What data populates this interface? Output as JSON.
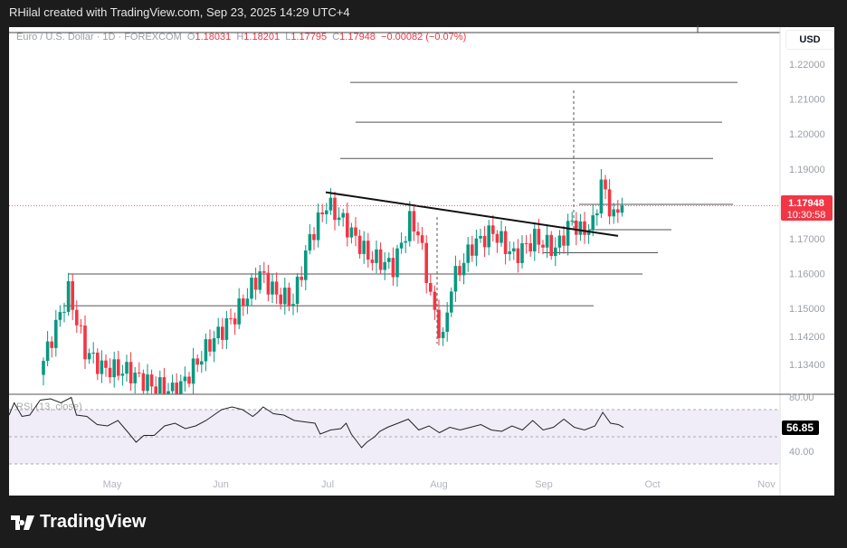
{
  "header": {
    "credit": "RHilal created with TradingView.com, Sep 23, 2025 14:29 UTC+4"
  },
  "legend": {
    "symbol": "Euro / U.S. Dollar · 1D · FOREXCOM",
    "o_label": "O",
    "o": "1.18031",
    "h_label": "H",
    "h": "1.18201",
    "l_label": "L",
    "l": "1.17795",
    "c_label": "C",
    "c": "1.17948",
    "change": "−0.00082 (−0.07%)"
  },
  "currency_button": "USD",
  "price_tag": {
    "price": "1.17948",
    "countdown": "10:30:58"
  },
  "rsi": {
    "label": "RSI (13, close)",
    "value": "56.85",
    "ticks": [
      "80.00",
      "40.00"
    ]
  },
  "footer": {
    "logo": "TradingView"
  },
  "colors": {
    "up": "#089981",
    "down": "#f23645",
    "rsi_band": "#f0edf8"
  },
  "chart_data": {
    "type": "candlestick",
    "title": "Euro / U.S. Dollar · 1D · FOREXCOM",
    "ylabel": "USD",
    "ylim": [
      1.12,
      1.225
    ],
    "y_ticks": [
      "1.22000",
      "1.21000",
      "1.20000",
      "1.19000",
      "1.17000",
      "1.16000",
      "1.15000",
      "1.14200",
      "1.13400"
    ],
    "y_tick_values": [
      1.22,
      1.21,
      1.2,
      1.19,
      1.17,
      1.16,
      1.15,
      1.142,
      1.134
    ],
    "x_ticks": [
      "May",
      "Jun",
      "Jul",
      "Aug",
      "Sep",
      "Oct",
      "Nov"
    ],
    "close_path": [
      [
        0,
        1.135
      ],
      [
        6,
        1.155
      ],
      [
        10,
        1.138
      ],
      [
        14,
        1.133
      ],
      [
        20,
        1.132
      ],
      [
        26,
        1.128
      ],
      [
        32,
        1.126
      ],
      [
        40,
        1.14
      ],
      [
        46,
        1.148
      ],
      [
        52,
        1.16
      ],
      [
        56,
        1.154
      ],
      [
        60,
        1.152
      ],
      [
        64,
        1.17
      ],
      [
        68,
        1.18
      ],
      [
        72,
        1.175
      ],
      [
        78,
        1.165
      ],
      [
        84,
        1.162
      ],
      [
        88,
        1.175
      ],
      [
        90,
        1.172
      ],
      [
        92,
        1.16
      ],
      [
        94,
        1.148
      ],
      [
        96,
        1.141
      ],
      [
        98,
        1.157
      ],
      [
        103,
        1.168
      ],
      [
        108,
        1.172
      ],
      [
        113,
        1.165
      ],
      [
        118,
        1.17
      ],
      [
        123,
        1.167
      ],
      [
        127,
        1.175
      ],
      [
        129,
        1.172
      ],
      [
        132,
        1.174
      ],
      [
        134,
        1.186
      ],
      [
        137,
        1.176
      ],
      [
        139,
        1.1795
      ]
    ],
    "levels": [
      1.2148,
      1.2034,
      1.193,
      1.1726,
      1.166,
      1.1599,
      1.1508
    ],
    "trendline": [
      [
        1.1833
      ],
      [
        1.1708
      ]
    ],
    "last_price": 1.17948,
    "rsi_path": [
      [
        0,
        66
      ],
      [
        2,
        75
      ],
      [
        5,
        65
      ],
      [
        8,
        66
      ],
      [
        12,
        77
      ],
      [
        16,
        78
      ],
      [
        20,
        75
      ],
      [
        24,
        79
      ],
      [
        26,
        66
      ],
      [
        30,
        65
      ],
      [
        34,
        59
      ],
      [
        38,
        58
      ],
      [
        42,
        62
      ],
      [
        46,
        53
      ],
      [
        49,
        46
      ],
      [
        52,
        51
      ],
      [
        56,
        51
      ],
      [
        60,
        58
      ],
      [
        64,
        60
      ],
      [
        68,
        56
      ],
      [
        72,
        58
      ],
      [
        76,
        62
      ],
      [
        79,
        66
      ],
      [
        82,
        70
      ],
      [
        86,
        72
      ],
      [
        90,
        70
      ],
      [
        94,
        65
      ],
      [
        96,
        68
      ],
      [
        98,
        72
      ],
      [
        102,
        67
      ],
      [
        106,
        66
      ],
      [
        110,
        62
      ],
      [
        114,
        61
      ],
      [
        118,
        60
      ],
      [
        120,
        52
      ],
      [
        124,
        55
      ],
      [
        128,
        56
      ],
      [
        130,
        60
      ],
      [
        132,
        52
      ],
      [
        134,
        47
      ],
      [
        136,
        42
      ],
      [
        138,
        46
      ],
      [
        141,
        50
      ],
      [
        143,
        54
      ],
      [
        146,
        57
      ],
      [
        150,
        60
      ],
      [
        154,
        63
      ],
      [
        158,
        55
      ],
      [
        162,
        58
      ],
      [
        166,
        53
      ],
      [
        170,
        57
      ],
      [
        174,
        55
      ],
      [
        178,
        57
      ],
      [
        182,
        59
      ],
      [
        186,
        55
      ],
      [
        190,
        54
      ],
      [
        194,
        58
      ],
      [
        198,
        55
      ],
      [
        202,
        62
      ],
      [
        206,
        55
      ],
      [
        210,
        57
      ],
      [
        214,
        63
      ],
      [
        218,
        57
      ],
      [
        222,
        55
      ],
      [
        226,
        58
      ],
      [
        229,
        68
      ],
      [
        232,
        60
      ],
      [
        235,
        59
      ],
      [
        237,
        56.85
      ]
    ],
    "rsi_levels": [
      70,
      50,
      30
    ]
  }
}
